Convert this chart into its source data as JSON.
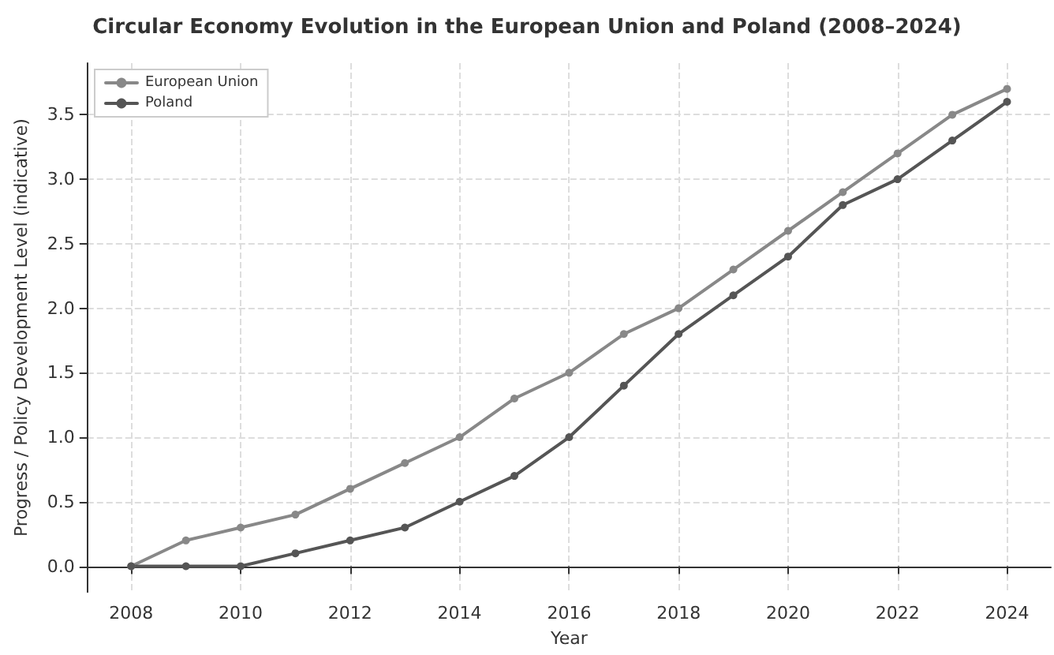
{
  "chart_data": {
    "type": "line",
    "title": "Circular Economy Evolution in the European Union and Poland (2008–2024)",
    "xlabel": "Year",
    "ylabel": "Progress / Policy Development Level (indicative)",
    "x": [
      2008,
      2009,
      2010,
      2011,
      2012,
      2013,
      2014,
      2015,
      2016,
      2017,
      2018,
      2019,
      2020,
      2021,
      2022,
      2023,
      2024
    ],
    "series": [
      {
        "name": "European Union",
        "color": "#888888",
        "values": [
          0,
          0.2,
          0.3,
          0.4,
          0.6,
          0.8,
          1.0,
          1.3,
          1.5,
          1.8,
          2.0,
          2.3,
          2.6,
          2.9,
          3.2,
          3.5,
          3.7
        ]
      },
      {
        "name": "Poland",
        "color": "#555555",
        "values": [
          0,
          0,
          0,
          0.1,
          0.2,
          0.3,
          0.5,
          0.7,
          1.0,
          1.4,
          1.8,
          2.1,
          2.4,
          2.8,
          3.0,
          3.3,
          3.6
        ]
      }
    ],
    "xlim": [
      2007.2,
      2024.8
    ],
    "xticks": [
      2008,
      2010,
      2012,
      2014,
      2016,
      2018,
      2020,
      2022,
      2024
    ],
    "ylim": [
      -0.2,
      3.9
    ],
    "yticks": [
      {
        "value": 0,
        "label": "0.0"
      },
      {
        "value": 0.5,
        "label": "0.5"
      },
      {
        "value": 1,
        "label": "1.0"
      },
      {
        "value": 1.5,
        "label": "1.5"
      },
      {
        "value": 2,
        "label": "2.0"
      },
      {
        "value": 2.5,
        "label": "2.5"
      },
      {
        "value": 3,
        "label": "3.0"
      },
      {
        "value": 3.5,
        "label": "3.5"
      }
    ],
    "grid": true,
    "legend": "top left",
    "marker": "circle",
    "line_style": "solid"
  }
}
